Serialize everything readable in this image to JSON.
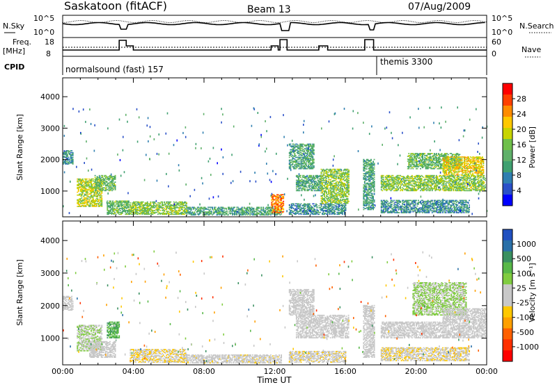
{
  "header": {
    "site": "Saskatoon (fitACF)",
    "beam": "Beam 13",
    "date": "07/Aug/2009"
  },
  "summary_panels": {
    "nsky_label": "N.Sky",
    "nsky_ticks": [
      "10^5",
      "10^0"
    ],
    "nsearch_label": "N.Search",
    "nsearch_ticks": [
      "10^5",
      "10^0"
    ],
    "freq_label": "Freq.",
    "freq_unit": "[MHz]",
    "freq_ticks": [
      "18",
      "8"
    ],
    "nave_label": "Nave",
    "nave_ticks": [
      "60",
      "0"
    ],
    "cpid_label": "CPID",
    "cpid_modes": [
      {
        "name": "normalsound (fast) 157",
        "start_hour": 0
      },
      {
        "name": "themis 3300",
        "start_hour": 18
      }
    ]
  },
  "chart_data": [
    {
      "type": "heatmap",
      "name": "power",
      "xlabel": "Time UT",
      "ylabel": "Slant Range [km]",
      "xlim": [
        0,
        24
      ],
      "ylim": [
        180,
        4600
      ],
      "x_ticks": [
        "00:00",
        "04:00",
        "08:00",
        "12:00",
        "16:00",
        "20:00",
        "00:00"
      ],
      "y_ticks": [
        1000,
        2000,
        3000,
        4000
      ],
      "colorbar": {
        "label": "Power [dB]",
        "ticks": [
          "28",
          "24",
          "20",
          "16",
          "12",
          "8",
          "4"
        ],
        "colors": [
          "#0000ff",
          "#2a50c8",
          "#2f7fb0",
          "#3fa070",
          "#5fb06a",
          "#6fc04a",
          "#c8d400",
          "#ffc800",
          "#ff8c00",
          "#ff4000",
          "#ff0000"
        ]
      },
      "echo_regions": [
        {
          "t0": 0.0,
          "t1": 0.6,
          "r0": 1850,
          "r1": 2300,
          "value": 10
        },
        {
          "t0": 0.8,
          "t1": 2.2,
          "r0": 500,
          "r1": 1400,
          "value": 18
        },
        {
          "t0": 1.8,
          "t1": 3.0,
          "r0": 1000,
          "r1": 1500,
          "value": 14
        },
        {
          "t0": 2.5,
          "t1": 3.8,
          "r0": 250,
          "r1": 700,
          "value": 14
        },
        {
          "t0": 3.8,
          "t1": 7.0,
          "r0": 250,
          "r1": 650,
          "value": 16
        },
        {
          "t0": 7.0,
          "t1": 12.4,
          "r0": 230,
          "r1": 500,
          "value": 12
        },
        {
          "t0": 11.8,
          "t1": 12.5,
          "r0": 300,
          "r1": 900,
          "value": 24
        },
        {
          "t0": 12.8,
          "t1": 16.0,
          "r0": 250,
          "r1": 600,
          "value": 10
        },
        {
          "t0": 12.8,
          "t1": 14.2,
          "r0": 1700,
          "r1": 2500,
          "value": 12
        },
        {
          "t0": 13.2,
          "t1": 14.6,
          "r0": 1000,
          "r1": 1500,
          "value": 12
        },
        {
          "t0": 14.6,
          "t1": 16.2,
          "r0": 600,
          "r1": 1700,
          "value": 16
        },
        {
          "t0": 17.0,
          "t1": 17.6,
          "r0": 400,
          "r1": 2000,
          "value": 12
        },
        {
          "t0": 18.0,
          "t1": 23.9,
          "r0": 1000,
          "r1": 1500,
          "value": 16
        },
        {
          "t0": 18.0,
          "t1": 23.0,
          "r0": 300,
          "r1": 700,
          "value": 10
        },
        {
          "t0": 19.5,
          "t1": 22.5,
          "r0": 1700,
          "r1": 2200,
          "value": 14
        },
        {
          "t0": 21.5,
          "t1": 23.8,
          "r0": 1500,
          "r1": 2100,
          "value": 20
        }
      ]
    },
    {
      "type": "heatmap",
      "name": "velocity",
      "xlabel": "Time UT",
      "ylabel": "Slant Range [km]",
      "xlim": [
        0,
        24
      ],
      "ylim": [
        180,
        4600
      ],
      "x_ticks": [
        "00:00",
        "04:00",
        "08:00",
        "12:00",
        "16:00",
        "20:00",
        "00:00"
      ],
      "y_ticks": [
        1000,
        2000,
        3000,
        4000
      ],
      "colorbar": {
        "label": "Velocity [m s⁻¹]",
        "ticks": [
          "1000",
          "500",
          "100",
          "25",
          "-25",
          "-100",
          "-500",
          "-1000"
        ],
        "colors": [
          "#2050c0",
          "#2a70a8",
          "#3a9060",
          "#58b848",
          "#80cc40",
          "#c8c8c8",
          "#c8c8c8",
          "#ffc800",
          "#ffa000",
          "#ff6000",
          "#ff3000",
          "#ff0000"
        ]
      },
      "echo_regions": [
        {
          "t0": 0.0,
          "t1": 0.6,
          "r0": 1850,
          "r1": 2300,
          "value": 0
        },
        {
          "t0": 0.8,
          "t1": 2.2,
          "r0": 600,
          "r1": 1400,
          "value": 150
        },
        {
          "t0": 1.5,
          "t1": 3.0,
          "r0": 400,
          "r1": 900,
          "value": 0
        },
        {
          "t0": 2.5,
          "t1": 3.2,
          "r0": 1000,
          "r1": 1500,
          "value": 500
        },
        {
          "t0": 3.8,
          "t1": 7.0,
          "r0": 250,
          "r1": 650,
          "value": -150
        },
        {
          "t0": 7.0,
          "t1": 12.4,
          "r0": 230,
          "r1": 500,
          "value": -60
        },
        {
          "t0": 12.8,
          "t1": 16.0,
          "r0": 250,
          "r1": 600,
          "value": -80
        },
        {
          "t0": 12.8,
          "t1": 14.2,
          "r0": 1700,
          "r1": 2500,
          "value": 0
        },
        {
          "t0": 13.2,
          "t1": 16.2,
          "r0": 1000,
          "r1": 1700,
          "value": 0
        },
        {
          "t0": 17.0,
          "t1": 17.6,
          "r0": 400,
          "r1": 2000,
          "value": 0
        },
        {
          "t0": 18.0,
          "t1": 23.9,
          "r0": 1000,
          "r1": 1500,
          "value": 0
        },
        {
          "t0": 18.0,
          "t1": 23.0,
          "r0": 300,
          "r1": 700,
          "value": -120
        },
        {
          "t0": 19.8,
          "t1": 22.8,
          "r0": 1700,
          "r1": 2700,
          "value": 200
        },
        {
          "t0": 21.5,
          "t1": 23.9,
          "r0": 1500,
          "r1": 1900,
          "value": 0
        }
      ]
    }
  ]
}
